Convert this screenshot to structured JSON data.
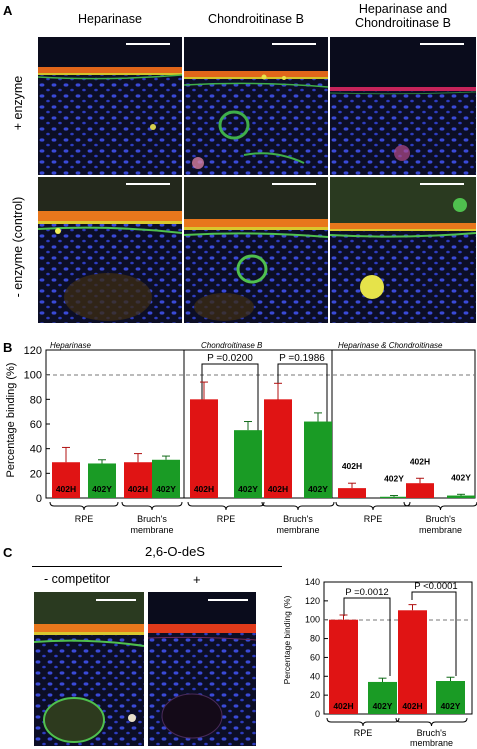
{
  "panelA": {
    "letter": "A",
    "columns": [
      "Heparinase",
      "Chondroitinase B",
      "Heparinase and\nChondroitinase B"
    ],
    "rows": [
      "+ enzyme",
      "- enzyme (control)"
    ]
  },
  "panelB": {
    "letter": "B",
    "ylabel": "Percentage binding (%)",
    "yticks": [
      "0",
      "20",
      "40",
      "60",
      "80",
      "100",
      "120"
    ],
    "groups": [
      "Heparinase",
      "Chondroitinase B",
      "Heparinase & Chondroitinase"
    ],
    "pvalues": [
      "P =0.0200",
      "P =0.1986"
    ],
    "bar_labels": [
      "402H",
      "402Y"
    ],
    "x_groups": [
      "RPE",
      "Bruch's\nmembrane"
    ]
  },
  "panelC": {
    "letter": "C",
    "title": "2,6-O-deS",
    "minus_label": "- competitor",
    "plus_label": "+",
    "ylabel": "Percentage binding (%)",
    "yticks": [
      "0",
      "20",
      "40",
      "60",
      "80",
      "100",
      "120",
      "140"
    ],
    "pvalues": [
      "P =0.0012",
      "P <0.0001"
    ],
    "bar_labels": [
      "402H",
      "402Y"
    ],
    "x_groups": [
      "RPE",
      "Bruch's\nmembrane"
    ]
  },
  "colors": {
    "h402": "#e01414",
    "y402": "#1a9b25",
    "micro_bg": "#0c0e26"
  },
  "chart_data": [
    {
      "type": "bar",
      "title": "",
      "ylabel": "Percentage binding (%)",
      "ylim": [
        0,
        120
      ],
      "reference_line": 100,
      "panels": [
        {
          "name": "Heparinase",
          "categories": [
            "RPE",
            "Bruch's membrane"
          ],
          "series": [
            {
              "name": "402H",
              "values": [
                29,
                29
              ],
              "errors": [
                12,
                7
              ]
            },
            {
              "name": "402Y",
              "values": [
                28,
                31
              ],
              "errors": [
                3,
                3
              ]
            }
          ]
        },
        {
          "name": "Chondroitinase B",
          "categories": [
            "RPE",
            "Bruch's membrane"
          ],
          "series": [
            {
              "name": "402H",
              "values": [
                80,
                80
              ],
              "errors": [
                14,
                13
              ]
            },
            {
              "name": "402Y",
              "values": [
                55,
                62
              ],
              "errors": [
                7,
                7
              ]
            }
          ]
        },
        {
          "name": "Heparinase & Chondroitinase",
          "categories": [
            "RPE",
            "Bruch's membrane"
          ],
          "series": [
            {
              "name": "402H",
              "values": [
                8,
                12
              ],
              "errors": [
                4,
                4
              ]
            },
            {
              "name": "402Y",
              "values": [
                1,
                2
              ],
              "errors": [
                1,
                1
              ]
            }
          ]
        }
      ]
    },
    {
      "type": "bar",
      "title": "",
      "ylabel": "Percentage binding (%)",
      "ylim": [
        0,
        140
      ],
      "reference_line": 100,
      "categories": [
        "RPE",
        "Bruch's membrane"
      ],
      "series": [
        {
          "name": "402H",
          "values": [
            100,
            110
          ],
          "errors": [
            5,
            6
          ]
        },
        {
          "name": "402Y",
          "values": [
            34,
            35
          ],
          "errors": [
            4,
            4
          ]
        }
      ]
    }
  ]
}
